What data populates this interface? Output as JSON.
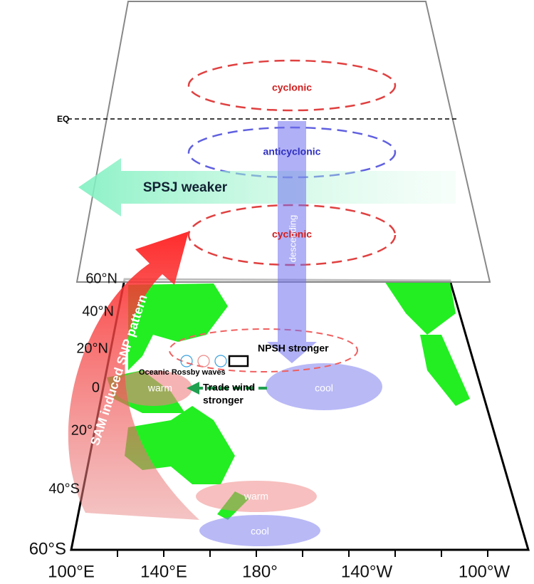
{
  "upper_layer": {
    "circulations": [
      "cyclonic",
      "anticyclonic",
      "cyclonic"
    ],
    "equator": "EQ",
    "jet": "SPSJ weaker",
    "vertical_motion": "descending"
  },
  "map": {
    "lat_labels": [
      "60°N",
      "40°N",
      "20°N",
      "0",
      "20°",
      "40°S",
      "60°S"
    ],
    "lon_labels": [
      "100°E",
      "140°E",
      "180°",
      "140°W",
      "100°W"
    ],
    "forcing": "SAM induced SNP pattern",
    "high": "NPSH stronger",
    "waves": "Oceanic Rossby waves",
    "trade_wind": [
      "Trade wind",
      "stronger"
    ],
    "sst": [
      "warm",
      "cool",
      "warm",
      "cool"
    ]
  }
}
